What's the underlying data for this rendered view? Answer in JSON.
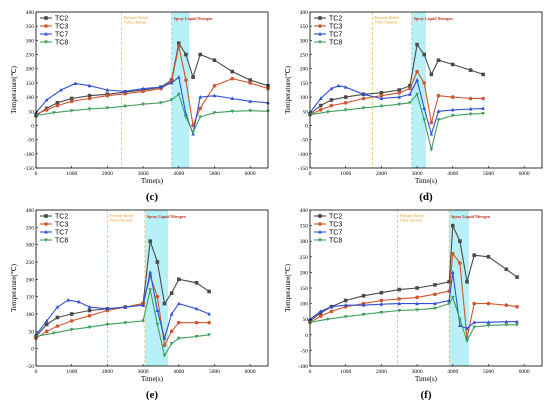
{
  "colors": {
    "TC2": "#4a4a4a",
    "TC3": "#d0562f",
    "TC7": "#2f4fd6",
    "TC8": "#3f9f5a",
    "valve_line": "#f0c060",
    "spray_band": "#b8f0f8",
    "annotation_valve": "#e8a030",
    "annotation_spray": "#c03020"
  },
  "chart_data": [
    {
      "type": "line",
      "panel_label": "(c)",
      "xlabel": "Time(s)",
      "ylabel": "Temperature(℃)",
      "xlim": [
        0,
        6500
      ],
      "ylim": [
        -150,
        400
      ],
      "xticks": [
        0,
        1000,
        2000,
        3000,
        4000,
        5000,
        6000
      ],
      "yticks": [
        -150,
        -100,
        -50,
        0,
        50,
        100,
        150,
        200,
        250,
        300,
        350,
        400
      ],
      "legend_position": "top-left",
      "valve_opened_x": 2400,
      "spray_range": [
        3800,
        4300
      ],
      "annotations": {
        "valve": "Pressure Relief\nValve Opened",
        "spray": "Spray Liquid Nitrogen"
      },
      "series": [
        {
          "name": "TC2",
          "marker": "square",
          "x": [
            0,
            300,
            600,
            1000,
            1500,
            2000,
            2500,
            3000,
            3500,
            3800,
            4000,
            4200,
            4400,
            4600,
            5000,
            5500,
            6000,
            6500
          ],
          "y": [
            35,
            60,
            80,
            95,
            105,
            110,
            118,
            125,
            135,
            160,
            290,
            250,
            170,
            250,
            230,
            190,
            160,
            140
          ]
        },
        {
          "name": "TC3",
          "marker": "circle",
          "x": [
            0,
            300,
            600,
            1000,
            1500,
            2000,
            2500,
            3000,
            3500,
            3800,
            4000,
            4200,
            4400,
            4600,
            5000,
            5500,
            6000,
            6500
          ],
          "y": [
            40,
            55,
            70,
            85,
            95,
            105,
            112,
            120,
            130,
            155,
            280,
            160,
            0,
            60,
            140,
            165,
            150,
            130
          ]
        },
        {
          "name": "TC7",
          "marker": "triangle",
          "x": [
            0,
            300,
            700,
            1100,
            1500,
            2000,
            2500,
            3000,
            3500,
            3800,
            4000,
            4200,
            4400,
            4600,
            5000,
            5500,
            6000,
            6500
          ],
          "y": [
            45,
            90,
            125,
            148,
            140,
            125,
            120,
            130,
            135,
            150,
            170,
            40,
            -30,
            100,
            105,
            95,
            85,
            80
          ]
        },
        {
          "name": "TC8",
          "marker": "down-triangle",
          "x": [
            0,
            500,
            1000,
            1500,
            2000,
            2500,
            3000,
            3500,
            3800,
            4000,
            4200,
            4400,
            4600,
            5000,
            5500,
            6000,
            6500
          ],
          "y": [
            35,
            45,
            52,
            58,
            62,
            68,
            75,
            80,
            90,
            110,
            30,
            -25,
            30,
            45,
            50,
            52,
            50
          ]
        }
      ]
    },
    {
      "type": "line",
      "panel_label": "(d)",
      "xlabel": "Time(s)",
      "ylabel": "Temperature(℃)",
      "xlim": [
        0,
        6500
      ],
      "ylim": [
        -150,
        400
      ],
      "xticks": [
        0,
        1000,
        2000,
        3000,
        4000,
        5000,
        6000
      ],
      "yticks": [
        -150,
        -100,
        -50,
        0,
        50,
        100,
        150,
        200,
        250,
        300,
        350,
        400
      ],
      "legend_position": "top-left",
      "valve_opened_x": 1750,
      "spray_range": [
        2850,
        3250
      ],
      "annotations": {
        "valve": "Pressure Relief\nValve Opened",
        "spray": "Spray Liquid Nitrogen"
      },
      "series": [
        {
          "name": "TC2",
          "marker": "square",
          "x": [
            0,
            300,
            600,
            1000,
            1500,
            2000,
            2500,
            2800,
            3000,
            3200,
            3400,
            3600,
            4000,
            4500,
            4850
          ],
          "y": [
            40,
            70,
            90,
            100,
            110,
            115,
            125,
            140,
            285,
            250,
            180,
            230,
            215,
            195,
            180
          ]
        },
        {
          "name": "TC3",
          "marker": "circle",
          "x": [
            0,
            300,
            600,
            1000,
            1500,
            2000,
            2500,
            2800,
            3000,
            3200,
            3400,
            3600,
            4000,
            4500,
            4850
          ],
          "y": [
            38,
            55,
            70,
            80,
            95,
            105,
            115,
            130,
            190,
            150,
            10,
            105,
            100,
            95,
            95
          ]
        },
        {
          "name": "TC7",
          "marker": "triangle",
          "x": [
            0,
            300,
            600,
            800,
            1000,
            1500,
            2000,
            2500,
            2800,
            3000,
            3200,
            3400,
            3600,
            4000,
            4500,
            4850
          ],
          "y": [
            45,
            95,
            130,
            140,
            135,
            110,
            95,
            100,
            110,
            160,
            60,
            -30,
            50,
            55,
            58,
            60
          ]
        },
        {
          "name": "TC8",
          "marker": "down-triangle",
          "x": [
            0,
            500,
            1000,
            1500,
            2000,
            2500,
            2800,
            3000,
            3200,
            3400,
            3600,
            4000,
            4500,
            4850
          ],
          "y": [
            38,
            48,
            55,
            62,
            68,
            75,
            80,
            110,
            20,
            -85,
            20,
            35,
            40,
            42
          ]
        }
      ]
    },
    {
      "type": "line",
      "panel_label": "(e)",
      "xlabel": "Time(s)",
      "ylabel": "Temperature(℃)",
      "xlim": [
        0,
        6500
      ],
      "ylim": [
        -50,
        400
      ],
      "xticks": [
        0,
        1000,
        2000,
        3000,
        4000,
        5000,
        6000
      ],
      "yticks": [
        -50,
        0,
        50,
        100,
        150,
        200,
        250,
        300,
        350,
        400
      ],
      "legend_position": "top-left",
      "valve_opened_x": 2000,
      "spray_range": [
        3050,
        3700
      ],
      "annotations": {
        "valve": "Pressure Relief\nValve Opened",
        "spray": "Spray Liquid Nitrogen"
      },
      "series": [
        {
          "name": "TC2",
          "marker": "square",
          "x": [
            0,
            300,
            600,
            1000,
            1500,
            2000,
            2500,
            3000,
            3200,
            3400,
            3600,
            3800,
            4000,
            4500,
            4850
          ],
          "y": [
            35,
            70,
            90,
            100,
            110,
            115,
            120,
            130,
            310,
            250,
            130,
            160,
            200,
            190,
            165
          ]
        },
        {
          "name": "TC3",
          "marker": "circle",
          "x": [
            0,
            300,
            600,
            1000,
            1500,
            2000,
            2500,
            3000,
            3200,
            3400,
            3600,
            3800,
            4000,
            4500,
            4850
          ],
          "y": [
            30,
            50,
            65,
            80,
            95,
            110,
            120,
            130,
            210,
            150,
            10,
            50,
            75,
            75,
            75
          ]
        },
        {
          "name": "TC7",
          "marker": "triangle",
          "x": [
            0,
            300,
            600,
            900,
            1200,
            1500,
            2000,
            2500,
            3000,
            3200,
            3400,
            3600,
            3800,
            4000,
            4500,
            4850
          ],
          "y": [
            40,
            80,
            120,
            140,
            135,
            120,
            115,
            120,
            125,
            220,
            110,
            30,
            100,
            130,
            115,
            100
          ]
        },
        {
          "name": "TC8",
          "marker": "down-triangle",
          "x": [
            0,
            500,
            1000,
            1500,
            2000,
            2500,
            3000,
            3200,
            3400,
            3600,
            3800,
            4000,
            4500,
            4850
          ],
          "y": [
            35,
            45,
            55,
            62,
            70,
            75,
            80,
            170,
            70,
            -20,
            15,
            30,
            35,
            40
          ]
        }
      ]
    },
    {
      "type": "line",
      "panel_label": "(f)",
      "xlabel": "Time(s)",
      "ylabel": "Temperature(℃)",
      "xlim": [
        0,
        6500
      ],
      "ylim": [
        -100,
        400
      ],
      "xticks": [
        0,
        1000,
        2000,
        3000,
        4000,
        5000,
        6000
      ],
      "yticks": [
        -100,
        -50,
        0,
        50,
        100,
        150,
        200,
        250,
        300,
        350,
        400
      ],
      "legend_position": "top-left",
      "valve_opened_x": 2450,
      "spray_range": [
        3900,
        4450
      ],
      "annotations": {
        "valve": "Pressure Relief\nValve Opened",
        "spray": "Spray Liquid Nitrogen"
      },
      "series": [
        {
          "name": "TC2",
          "marker": "square",
          "x": [
            0,
            300,
            600,
            1000,
            1500,
            2000,
            2500,
            3000,
            3500,
            3900,
            4000,
            4200,
            4400,
            4600,
            5000,
            5500,
            5800
          ],
          "y": [
            45,
            70,
            90,
            110,
            125,
            135,
            145,
            150,
            160,
            170,
            350,
            300,
            170,
            255,
            250,
            210,
            185
          ]
        },
        {
          "name": "TC3",
          "marker": "circle",
          "x": [
            0,
            300,
            600,
            1000,
            1500,
            2000,
            2500,
            3000,
            3500,
            3900,
            4000,
            4200,
            4400,
            4600,
            5000,
            5500,
            5800
          ],
          "y": [
            40,
            60,
            75,
            90,
            100,
            110,
            115,
            120,
            130,
            140,
            260,
            230,
            -10,
            100,
            100,
            95,
            90
          ]
        },
        {
          "name": "TC7",
          "marker": "triangle",
          "x": [
            0,
            300,
            600,
            1000,
            1500,
            2000,
            2500,
            3000,
            3500,
            3900,
            4000,
            4200,
            4400,
            4600,
            5000,
            5500,
            5800
          ],
          "y": [
            50,
            75,
            90,
            95,
            95,
            98,
            100,
            100,
            100,
            110,
            200,
            30,
            20,
            40,
            40,
            42,
            42
          ]
        },
        {
          "name": "TC8",
          "marker": "down-triangle",
          "x": [
            0,
            500,
            1000,
            1500,
            2000,
            2500,
            3000,
            3500,
            3900,
            4000,
            4200,
            4400,
            4600,
            5000,
            5500,
            5800
          ],
          "y": [
            40,
            50,
            58,
            65,
            72,
            78,
            80,
            85,
            100,
            120,
            50,
            -20,
            25,
            30,
            32,
            32
          ]
        }
      ]
    }
  ]
}
